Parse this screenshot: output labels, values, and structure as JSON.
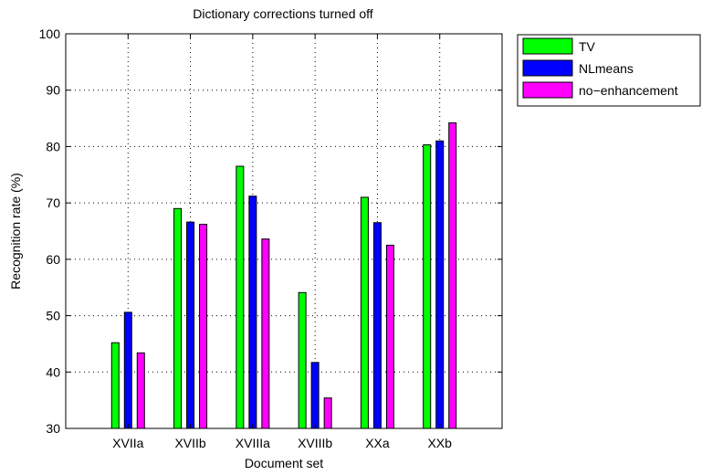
{
  "chart_data": {
    "type": "bar",
    "title": "Dictionary corrections turned off",
    "xlabel": "Document set",
    "ylabel": "Recognition rate (%)",
    "ylim": [
      30,
      100
    ],
    "yticks": [
      30,
      40,
      50,
      60,
      70,
      80,
      90,
      100
    ],
    "grid": true,
    "legend_position": "outside-top-right",
    "categories": [
      "XVIIa",
      "XVIIb",
      "XVIIIa",
      "XVIIIb",
      "XXa",
      "XXb"
    ],
    "series": [
      {
        "name": "TV",
        "color": "#00ff00",
        "values": [
          45.2,
          69.0,
          76.5,
          54.1,
          71.0,
          80.3
        ]
      },
      {
        "name": "NLmeans",
        "color": "#0000ff",
        "values": [
          50.6,
          66.6,
          71.2,
          41.7,
          66.5,
          81.0
        ]
      },
      {
        "name": "no−enhancement",
        "color": "#ff00ff",
        "values": [
          43.4,
          66.2,
          63.6,
          35.4,
          62.5,
          84.2
        ]
      }
    ]
  }
}
